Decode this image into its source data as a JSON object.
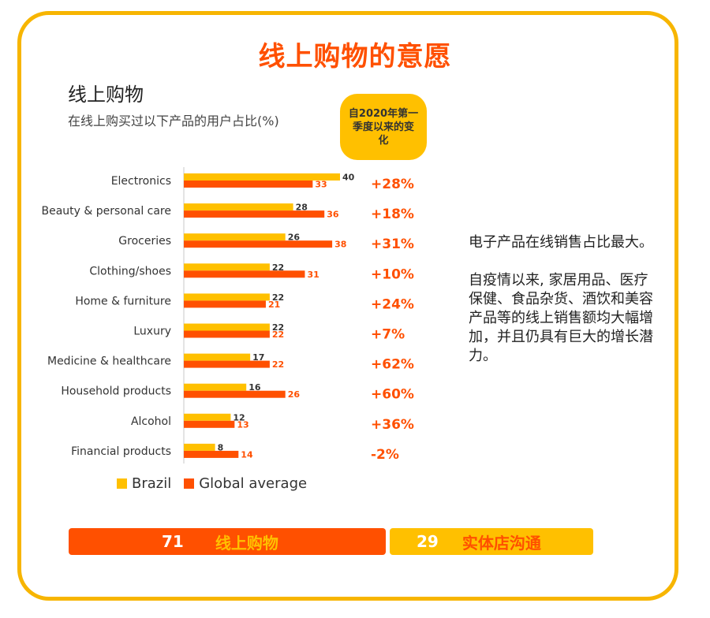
{
  "page_title": "线上购物的意愿",
  "change_header": "自2020年第一季度以来的变化",
  "commentary": [
    "电子产品在线销售占比最大。",
    "自疫情以来, 家居用品、医疗保健、食品杂货、酒饮和美容产品等的线上销售额均大幅增加，并且仍具有巨大的增长潜力。"
  ],
  "bottom": {
    "online_value": "71",
    "online_label": "线上购物",
    "store_value": "29",
    "store_label": "实体店沟通"
  },
  "colors": {
    "accent": "#ff5000",
    "brand_yellow": "#ffc000",
    "frame": "#f7b500"
  },
  "chart_data": {
    "type": "bar",
    "orientation": "horizontal",
    "title": "线上购物",
    "subtitle": "在线上购买过以下产品的用户占比(%)",
    "categories": [
      "Electronics",
      "Beauty & personal care",
      "Groceries",
      "Clothing/shoes",
      "Home & furniture",
      "Luxury",
      "Medicine & healthcare",
      "Household products",
      "Alcohol",
      "Financial products"
    ],
    "series": [
      {
        "name": "Brazil",
        "color": "#ffc000",
        "values": [
          40,
          28,
          26,
          22,
          22,
          22,
          17,
          16,
          12,
          8
        ]
      },
      {
        "name": "Global average",
        "color": "#ff5000",
        "values": [
          33,
          36,
          38,
          31,
          21,
          22,
          22,
          26,
          13,
          14
        ]
      }
    ],
    "change_since_2020q1": [
      "+28%",
      "+18%",
      "+31%",
      "+10%",
      "+24%",
      "+7%",
      "+62%",
      "+60%",
      "+36%",
      "-2%"
    ],
    "xlim": [
      0,
      40
    ],
    "legend_position": "bottom-left",
    "grid": false
  }
}
